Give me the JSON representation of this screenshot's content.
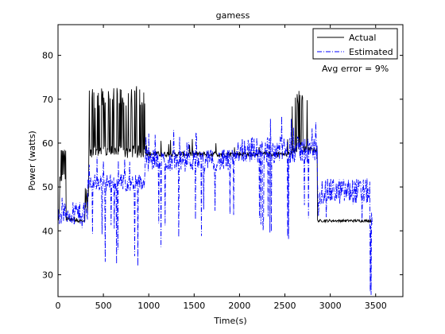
{
  "chart_data": {
    "type": "line",
    "title": "gamess",
    "xlabel": "Time(s)",
    "ylabel": "Power (watts)",
    "xlim": [
      0,
      3800
    ],
    "ylim": [
      25,
      87
    ],
    "xticks": [
      0,
      500,
      1000,
      1500,
      2000,
      2500,
      3000,
      3500
    ],
    "yticks": [
      30,
      40,
      50,
      60,
      70,
      80
    ],
    "grid": false,
    "legend_position": "top-right",
    "annotation": "Avg error =  9%",
    "series": [
      {
        "name": "Actual",
        "color": "#000000",
        "style": "solid",
        "segments": [
          {
            "x0": 0,
            "x1": 20,
            "base": 43,
            "noise": 1.5,
            "spikes": []
          },
          {
            "x0": 20,
            "x1": 90,
            "base": 52,
            "noise": 1,
            "spikes": [
              {
                "p": 0.5,
                "lo": 56,
                "hi": 59
              }
            ]
          },
          {
            "x0": 90,
            "x1": 220,
            "base": 42.7,
            "noise": 0.6,
            "spikes": []
          },
          {
            "x0": 220,
            "x1": 300,
            "base": 42.2,
            "noise": 0.4,
            "spikes": []
          },
          {
            "x0": 300,
            "x1": 340,
            "base": 47,
            "noise": 3,
            "spikes": []
          },
          {
            "x0": 340,
            "x1": 960,
            "base": 58,
            "noise": 1.5,
            "spikes": [
              {
                "p": 0.35,
                "lo": 68,
                "hi": 73
              }
            ]
          },
          {
            "x0": 960,
            "x1": 2580,
            "base": 57.5,
            "noise": 0.6,
            "spikes": [
              {
                "p": 0.02,
                "lo": 59,
                "hi": 61
              }
            ]
          },
          {
            "x0": 2580,
            "x1": 2750,
            "base": 59,
            "noise": 1.2,
            "spikes": [
              {
                "p": 0.35,
                "lo": 68,
                "hi": 72
              }
            ]
          },
          {
            "x0": 2750,
            "x1": 2860,
            "base": 58.5,
            "noise": 0.6,
            "spikes": []
          },
          {
            "x0": 2860,
            "x1": 3460,
            "base": 42.3,
            "noise": 0.3,
            "spikes": []
          }
        ]
      },
      {
        "name": "Estimated",
        "color": "#0000ff",
        "style": "dashdot",
        "segments": [
          {
            "x0": 0,
            "x1": 300,
            "base": 44,
            "noise": 2.5,
            "spikes": [
              {
                "p": 0.06,
                "lo": 40,
                "hi": 42
              },
              {
                "p": 0.04,
                "lo": 46,
                "hi": 48
              }
            ]
          },
          {
            "x0": 300,
            "x1": 330,
            "base": 44,
            "noise": 3,
            "spikes": [
              {
                "p": 0.15,
                "lo": 24,
                "hi": 30
              }
            ]
          },
          {
            "x0": 330,
            "x1": 960,
            "base": 51,
            "noise": 2,
            "spikes": [
              {
                "p": 0.05,
                "lo": 31,
                "hi": 42
              },
              {
                "p": 0.04,
                "lo": 55,
                "hi": 57
              }
            ]
          },
          {
            "x0": 960,
            "x1": 1950,
            "base": 56,
            "noise": 2.5,
            "spikes": [
              {
                "p": 0.06,
                "lo": 35,
                "hi": 45
              },
              {
                "p": 0.04,
                "lo": 60,
                "hi": 63
              }
            ]
          },
          {
            "x0": 1950,
            "x1": 2580,
            "base": 58.5,
            "noise": 3,
            "spikes": [
              {
                "p": 0.08,
                "lo": 38,
                "hi": 45
              },
              {
                "p": 0.05,
                "lo": 63,
                "hi": 67
              }
            ]
          },
          {
            "x0": 2580,
            "x1": 2860,
            "base": 58.5,
            "noise": 3,
            "spikes": [
              {
                "p": 0.06,
                "lo": 40,
                "hi": 46
              },
              {
                "p": 0.04,
                "lo": 62,
                "hi": 65
              }
            ]
          },
          {
            "x0": 2860,
            "x1": 3440,
            "base": 49,
            "noise": 3,
            "spikes": [
              {
                "p": 0.05,
                "lo": 40,
                "hi": 44
              }
            ]
          },
          {
            "x0": 3440,
            "x1": 3470,
            "base": 43,
            "noise": 2,
            "spikes": [
              {
                "p": 0.3,
                "lo": 24,
                "hi": 30
              }
            ]
          }
        ]
      }
    ]
  }
}
